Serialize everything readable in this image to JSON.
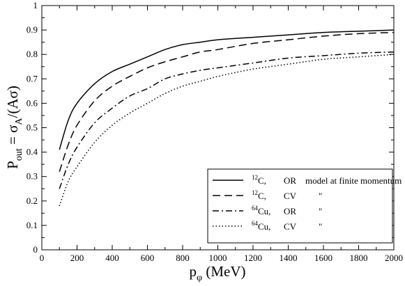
{
  "chart_data": {
    "type": "line",
    "xlabel": {
      "base": "p",
      "sub": "φ",
      "suffix": " (MeV)"
    },
    "ylabel": {
      "base": "P",
      "sub": "out",
      "mid": " = σ",
      "sub2": "A",
      "suffix": "/(Aσ)"
    },
    "xlim": [
      0,
      2000
    ],
    "ylim": [
      0,
      1
    ],
    "xticks": [
      0,
      200,
      400,
      600,
      800,
      1000,
      1200,
      1400,
      1600,
      1800,
      2000
    ],
    "yticks": [
      0,
      0.1,
      0.2,
      0.3,
      0.4,
      0.5,
      0.6,
      0.7,
      0.8,
      0.9,
      1
    ],
    "grid": false,
    "legend_position": "bottom-right",
    "series": [
      {
        "sup": "12",
        "element": "C,",
        "model": "OR",
        "note": "model at finite momentum",
        "dash": "solid",
        "x": [
          100,
          150,
          200,
          300,
          400,
          500,
          600,
          700,
          800,
          900,
          1000,
          1200,
          1400,
          1600,
          1800,
          2000
        ],
        "y": [
          0.41,
          0.53,
          0.6,
          0.68,
          0.73,
          0.76,
          0.79,
          0.82,
          0.84,
          0.85,
          0.86,
          0.87,
          0.88,
          0.89,
          0.895,
          0.9
        ]
      },
      {
        "sup": "12",
        "element": "C,",
        "model": "CV",
        "note": "\"",
        "dash": "dashed",
        "x": [
          100,
          150,
          200,
          300,
          400,
          500,
          600,
          700,
          800,
          900,
          1000,
          1200,
          1400,
          1600,
          1800,
          2000
        ],
        "y": [
          0.32,
          0.43,
          0.51,
          0.61,
          0.67,
          0.71,
          0.745,
          0.77,
          0.79,
          0.81,
          0.82,
          0.845,
          0.86,
          0.875,
          0.885,
          0.89
        ]
      },
      {
        "sup": "64",
        "element": "Cu,",
        "model": "OR",
        "note": "\"",
        "dash": "dashdot",
        "x": [
          100,
          150,
          200,
          300,
          400,
          500,
          600,
          700,
          800,
          900,
          1000,
          1200,
          1400,
          1600,
          1800,
          2000
        ],
        "y": [
          0.25,
          0.35,
          0.42,
          0.52,
          0.58,
          0.63,
          0.66,
          0.7,
          0.72,
          0.735,
          0.745,
          0.765,
          0.785,
          0.795,
          0.805,
          0.81
        ]
      },
      {
        "sup": "64",
        "element": "Cu,",
        "model": "CV",
        "note": "\"",
        "dash": "dotted",
        "x": [
          100,
          150,
          200,
          300,
          400,
          500,
          600,
          700,
          800,
          900,
          1000,
          1200,
          1400,
          1600,
          1800,
          2000
        ],
        "y": [
          0.18,
          0.28,
          0.34,
          0.44,
          0.51,
          0.56,
          0.6,
          0.64,
          0.67,
          0.69,
          0.71,
          0.74,
          0.76,
          0.78,
          0.79,
          0.8
        ]
      }
    ]
  }
}
